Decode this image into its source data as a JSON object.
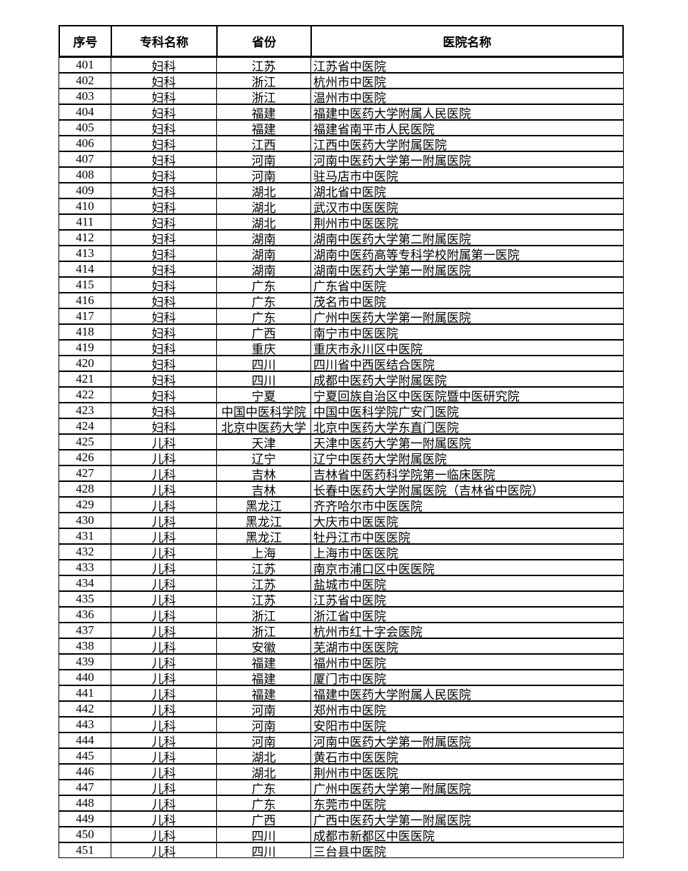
{
  "colors": {
    "background": "#ffffff",
    "border": "#000000",
    "text": "#000000"
  },
  "table": {
    "headers": [
      "序号",
      "专科名称",
      "省份",
      "医院名称"
    ],
    "rows": [
      [
        "401",
        "妇科",
        "江苏",
        "江苏省中医院"
      ],
      [
        "402",
        "妇科",
        "浙江",
        "杭州市中医院"
      ],
      [
        "403",
        "妇科",
        "浙江",
        "温州市中医院"
      ],
      [
        "404",
        "妇科",
        "福建",
        "福建中医药大学附属人民医院"
      ],
      [
        "405",
        "妇科",
        "福建",
        "福建省南平市人民医院"
      ],
      [
        "406",
        "妇科",
        "江西",
        "江西中医药大学附属医院"
      ],
      [
        "407",
        "妇科",
        "河南",
        "河南中医药大学第一附属医院"
      ],
      [
        "408",
        "妇科",
        "河南",
        "驻马店市中医院"
      ],
      [
        "409",
        "妇科",
        "湖北",
        "湖北省中医院"
      ],
      [
        "410",
        "妇科",
        "湖北",
        "武汉市中医医院"
      ],
      [
        "411",
        "妇科",
        "湖北",
        "荆州市中医医院"
      ],
      [
        "412",
        "妇科",
        "湖南",
        "湖南中医药大学第二附属医院"
      ],
      [
        "413",
        "妇科",
        "湖南",
        "湖南中医药高等专科学校附属第一医院"
      ],
      [
        "414",
        "妇科",
        "湖南",
        "湖南中医药大学第一附属医院"
      ],
      [
        "415",
        "妇科",
        "广东",
        "广东省中医院"
      ],
      [
        "416",
        "妇科",
        "广东",
        "茂名市中医院"
      ],
      [
        "417",
        "妇科",
        "广东",
        "广州中医药大学第一附属医院"
      ],
      [
        "418",
        "妇科",
        "广西",
        "南宁市中医医院"
      ],
      [
        "419",
        "妇科",
        "重庆",
        "重庆市永川区中医院"
      ],
      [
        "420",
        "妇科",
        "四川",
        "四川省中西医结合医院"
      ],
      [
        "421",
        "妇科",
        "四川",
        "成都中医药大学附属医院"
      ],
      [
        "422",
        "妇科",
        "宁夏",
        "宁夏回族自治区中医医院暨中医研究院"
      ],
      [
        "423",
        "妇科",
        "中国中医科学院",
        "中国中医科学院广安门医院"
      ],
      [
        "424",
        "妇科",
        "北京中医药大学",
        "北京中医药大学东直门医院"
      ],
      [
        "425",
        "儿科",
        "天津",
        "天津中医药大学第一附属医院"
      ],
      [
        "426",
        "儿科",
        "辽宁",
        "辽宁中医药大学附属医院"
      ],
      [
        "427",
        "儿科",
        "吉林",
        "吉林省中医药科学院第一临床医院"
      ],
      [
        "428",
        "儿科",
        "吉林",
        "长春中医药大学附属医院（吉林省中医院）"
      ],
      [
        "429",
        "儿科",
        "黑龙江",
        "齐齐哈尔市中医医院"
      ],
      [
        "430",
        "儿科",
        "黑龙江",
        "大庆市中医医院"
      ],
      [
        "431",
        "儿科",
        "黑龙江",
        "牡丹江市中医医院"
      ],
      [
        "432",
        "儿科",
        "上海",
        "上海市中医医院"
      ],
      [
        "433",
        "儿科",
        "江苏",
        "南京市浦口区中医医院"
      ],
      [
        "434",
        "儿科",
        "江苏",
        "盐城市中医院"
      ],
      [
        "435",
        "儿科",
        "江苏",
        "江苏省中医院"
      ],
      [
        "436",
        "儿科",
        "浙江",
        "浙江省中医院"
      ],
      [
        "437",
        "儿科",
        "浙江",
        "杭州市红十字会医院"
      ],
      [
        "438",
        "儿科",
        "安徽",
        "芜湖市中医医院"
      ],
      [
        "439",
        "儿科",
        "福建",
        "福州市中医院"
      ],
      [
        "440",
        "儿科",
        "福建",
        "厦门市中医院"
      ],
      [
        "441",
        "儿科",
        "福建",
        "福建中医药大学附属人民医院"
      ],
      [
        "442",
        "儿科",
        "河南",
        "郑州市中医院"
      ],
      [
        "443",
        "儿科",
        "河南",
        "安阳市中医院"
      ],
      [
        "444",
        "儿科",
        "河南",
        "河南中医药大学第一附属医院"
      ],
      [
        "445",
        "儿科",
        "湖北",
        "黄石市中医医院"
      ],
      [
        "446",
        "儿科",
        "湖北",
        "荆州市中医医院"
      ],
      [
        "447",
        "儿科",
        "广东",
        "广州中医药大学第一附属医院"
      ],
      [
        "448",
        "儿科",
        "广东",
        "东莞市中医院"
      ],
      [
        "449",
        "儿科",
        "广西",
        "广西中医药大学第一附属医院"
      ],
      [
        "450",
        "儿科",
        "四川",
        "成都市新都区中医医院"
      ],
      [
        "451",
        "儿科",
        "四川",
        "三台县中医院"
      ]
    ]
  }
}
